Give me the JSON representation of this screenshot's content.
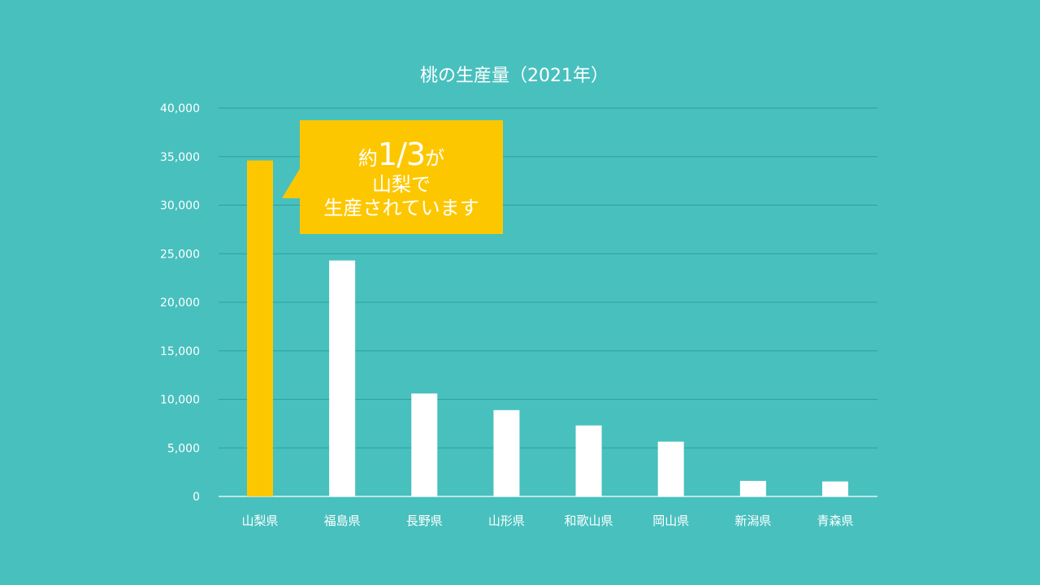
{
  "chart_data": {
    "type": "bar",
    "title": "桃の生産量（2021年）",
    "categories": [
      "山梨県",
      "福島県",
      "長野県",
      "山形県",
      "和歌山県",
      "岡山県",
      "新潟県",
      "青森県"
    ],
    "values": [
      34600,
      24300,
      10600,
      8890,
      7310,
      5640,
      1600,
      1540
    ],
    "ylim": [
      0,
      40000
    ],
    "yticks": [
      "0",
      "5,000",
      "10,000",
      "15,000",
      "20,000",
      "25,000",
      "30,000",
      "35,000",
      "40,000"
    ],
    "grid": true,
    "highlight_index": 0,
    "colors": {
      "background": "#48c0be",
      "bar": "#ffffff",
      "highlight": "#fdc700",
      "grid": "#2f9f9d",
      "text": "#ffffff"
    },
    "annotation": {
      "prefix": "約",
      "value": "1/3",
      "suffix": "が",
      "line2": "山梨で",
      "line3": "生産されています"
    }
  }
}
